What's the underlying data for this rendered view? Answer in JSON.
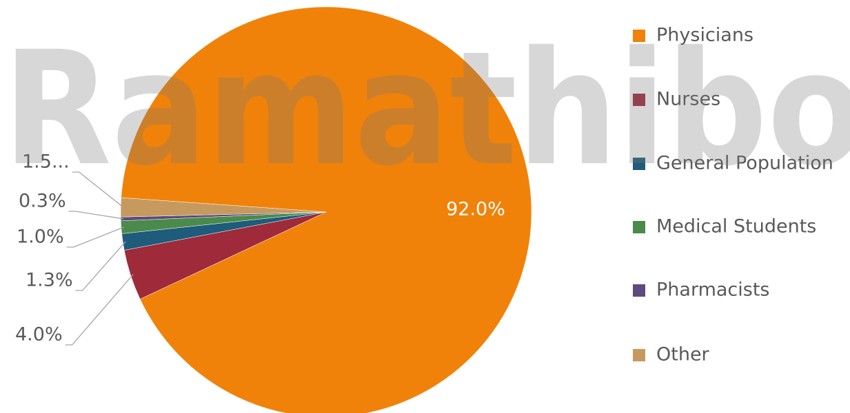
{
  "chart_data": {
    "type": "pie",
    "watermark": "Ramathibo",
    "categories": [
      "Physicians",
      "Nurses",
      "General Population",
      "Medical Students",
      "Pharmacists",
      "Other"
    ],
    "values": [
      92.0,
      4.0,
      1.3,
      1.0,
      0.3,
      1.5
    ],
    "value_labels": [
      "92.0%",
      "4.0%",
      "1.3%",
      "1.0%",
      "0.3%",
      "1.5..."
    ],
    "colors": [
      "#f0820a",
      "#9e2a3a",
      "#1f5b7a",
      "#4a8a4a",
      "#5e4a7e",
      "#c69a5e"
    ],
    "legend": "right"
  }
}
